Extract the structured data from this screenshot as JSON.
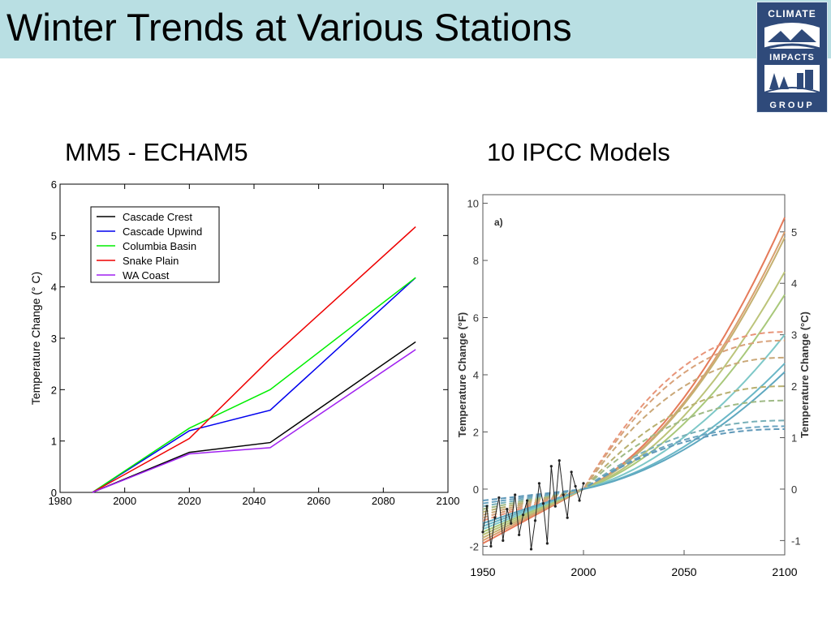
{
  "slide": {
    "title": "Winter Trends at Various Stations"
  },
  "logo": {
    "text_top": "CLIMATE",
    "text_mid": "IMPACTS",
    "text_bottom": "GROUP"
  },
  "colors": {
    "title_bar": "#b9dfe3",
    "logo_navy": "#2f4a7a"
  },
  "chart_data": [
    {
      "type": "line",
      "title": "MM5 - ECHAM5",
      "xlabel": "",
      "ylabel": "Temperature Change (°  C)",
      "xlim": [
        1980,
        2100
      ],
      "ylim": [
        0,
        6
      ],
      "x_ticks": [
        "1980",
        "2000",
        "2020",
        "2040",
        "2060",
        "2080",
        "2100"
      ],
      "y_ticks": [
        "0",
        "1",
        "2",
        "3",
        "4",
        "5",
        "6"
      ],
      "legend_position": "top-left",
      "series": [
        {
          "name": "Cascade Crest",
          "color": "#000000",
          "x": [
            1990,
            2020,
            2045,
            2090
          ],
          "y": [
            0,
            0.78,
            0.97,
            2.93
          ]
        },
        {
          "name": "Cascade Upwind",
          "color": "#0000ee",
          "x": [
            1990,
            2020,
            2045,
            2090
          ],
          "y": [
            0,
            1.2,
            1.6,
            4.18
          ]
        },
        {
          "name": "Columbia Basin",
          "color": "#00ee00",
          "x": [
            1990,
            2020,
            2045,
            2090
          ],
          "y": [
            0,
            1.25,
            2.0,
            4.18
          ]
        },
        {
          "name": "Snake Plain",
          "color": "#ee0000",
          "x": [
            1990,
            2020,
            2045,
            2090
          ],
          "y": [
            0,
            1.05,
            2.6,
            5.17
          ]
        },
        {
          "name": "WA Coast",
          "color": "#a020f0",
          "x": [
            1990,
            2020,
            2045,
            2090
          ],
          "y": [
            0,
            0.75,
            0.87,
            2.78
          ]
        }
      ]
    },
    {
      "type": "line",
      "title": "10 IPCC Models",
      "panel_label": "a)",
      "xlabel": "",
      "ylabel": "Temperature Change (°F)",
      "ylabel_right": "Temperature Change (°C)",
      "xlim": [
        1950,
        2100
      ],
      "ylim": [
        -2.3,
        10.3
      ],
      "x_ticks": [
        "1950",
        "2000",
        "2050",
        "2100"
      ],
      "y_ticks": [
        "-2",
        "0",
        "2",
        "4",
        "6",
        "8",
        "10"
      ],
      "y_ticks_right": [
        "-1",
        "0",
        "1",
        "2",
        "3",
        "4",
        "5"
      ],
      "observed": {
        "x": [
          1950,
          1952,
          1954,
          1956,
          1958,
          1960,
          1962,
          1964,
          1966,
          1968,
          1970,
          1972,
          1974,
          1976,
          1978,
          1980,
          1982,
          1984,
          1986,
          1988,
          1990,
          1992,
          1994,
          1996,
          1998,
          2000
        ],
        "y": [
          -1.5,
          -0.6,
          -2.0,
          -1.0,
          -0.3,
          -1.8,
          -0.7,
          -1.2,
          -0.2,
          -1.6,
          -0.9,
          -0.4,
          -2.1,
          -1.1,
          0.2,
          -0.5,
          -1.9,
          0.8,
          -0.6,
          1.0,
          -0.2,
          -1.0,
          0.6,
          0.1,
          -0.4,
          0.2
        ]
      },
      "series": [
        {
          "style": "solid",
          "color": "#e57a5a",
          "end_value": 9.5
        },
        {
          "style": "solid",
          "color": "#d9a070",
          "end_value": 9.0
        },
        {
          "style": "solid",
          "color": "#c4b070",
          "end_value": 8.8
        },
        {
          "style": "solid",
          "color": "#bcc47a",
          "end_value": 7.6
        },
        {
          "style": "solid",
          "color": "#a8c87a",
          "end_value": 6.8
        },
        {
          "style": "solid",
          "color": "#7ec8c8",
          "end_value": 5.4
        },
        {
          "style": "solid",
          "color": "#6ab7c7",
          "end_value": 4.4
        },
        {
          "style": "solid",
          "color": "#5fa8c0",
          "end_value": 4.1
        },
        {
          "style": "dashed",
          "color": "#e8957a",
          "end_value": 5.5
        },
        {
          "style": "dashed",
          "color": "#d8a27a",
          "end_value": 5.2
        },
        {
          "style": "dashed",
          "color": "#caa878",
          "end_value": 4.6
        },
        {
          "style": "dashed",
          "color": "#b8b070",
          "end_value": 3.6
        },
        {
          "style": "dashed",
          "color": "#9fba86",
          "end_value": 3.1
        },
        {
          "style": "dashed",
          "color": "#78b0b8",
          "end_value": 2.4
        },
        {
          "style": "dashed",
          "color": "#6aa4c0",
          "end_value": 2.2
        },
        {
          "style": "dashed",
          "color": "#5f98b8",
          "end_value": 2.1
        }
      ]
    }
  ]
}
